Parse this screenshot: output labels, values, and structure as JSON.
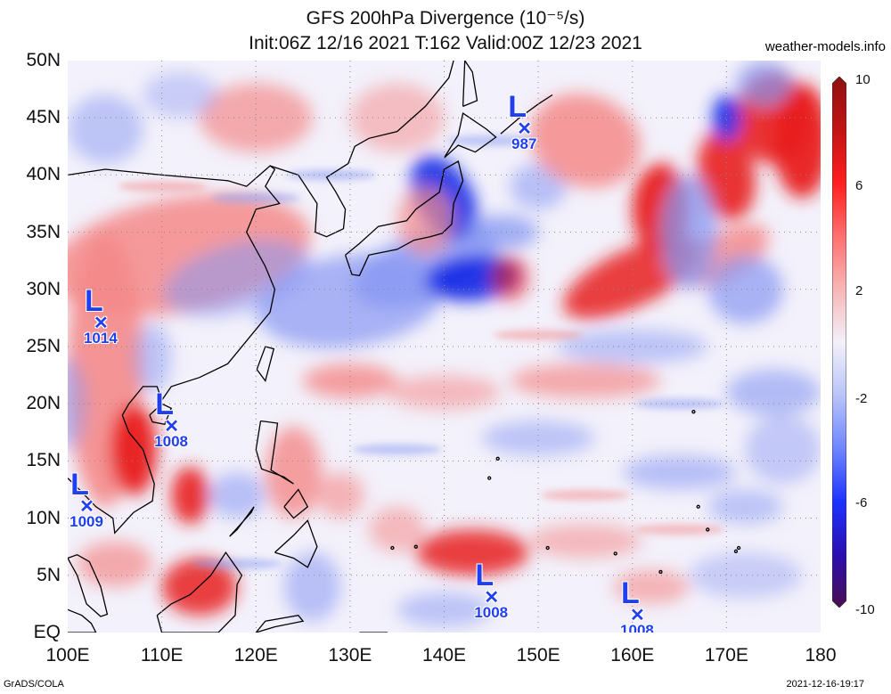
{
  "title_line1": "GFS 200hPa Divergence (10⁻⁵/s)",
  "title_line2": "Init:06Z 12/16 2021 T:162 Valid:00Z 12/23 2021",
  "site": "weather-models.info",
  "footer_left": "GrADS/COLA",
  "footer_right": "2021-12-16-19:17",
  "lat_labels": [
    "50N",
    "45N",
    "40N",
    "35N",
    "30N",
    "25N",
    "20N",
    "15N",
    "10N",
    "5N",
    "EQ"
  ],
  "lon_labels": [
    "100E",
    "110E",
    "120E",
    "130E",
    "140E",
    "150E",
    "160E",
    "170E",
    "180"
  ],
  "colorbar": {
    "labels": [
      "10",
      "6",
      "2",
      "-2",
      "-6",
      "-10"
    ],
    "stops": [
      "#4b0f4f",
      "#2a0fb0",
      "#1d33ff",
      "#6f86ff",
      "#b9c4f7",
      "#f4f0fb",
      "#f7b6b6",
      "#ff6f6f",
      "#ff1f1f",
      "#c21414",
      "#8f1010"
    ]
  },
  "lows": [
    {
      "label": "L",
      "value": "1014",
      "lon": 103.5,
      "lat": 27
    },
    {
      "label": "L",
      "value": "1008",
      "lon": 111,
      "lat": 18
    },
    {
      "label": "L",
      "value": "1009",
      "lon": 102,
      "lat": 11
    },
    {
      "label": "L",
      "value": "987",
      "lon": 148.5,
      "lat": 44
    },
    {
      "label": "L",
      "value": "1008",
      "lon": 145,
      "lat": 3
    },
    {
      "label": "L",
      "value": "1008",
      "lon": 160.5,
      "lat": 1.5
    }
  ],
  "field_colors": {
    "strong_pos": "#e81e1e",
    "pos": "#f48a8a",
    "neutral": "#f3f1fb",
    "neg": "#8797f2",
    "strong_neg": "#1a2fe6"
  }
}
